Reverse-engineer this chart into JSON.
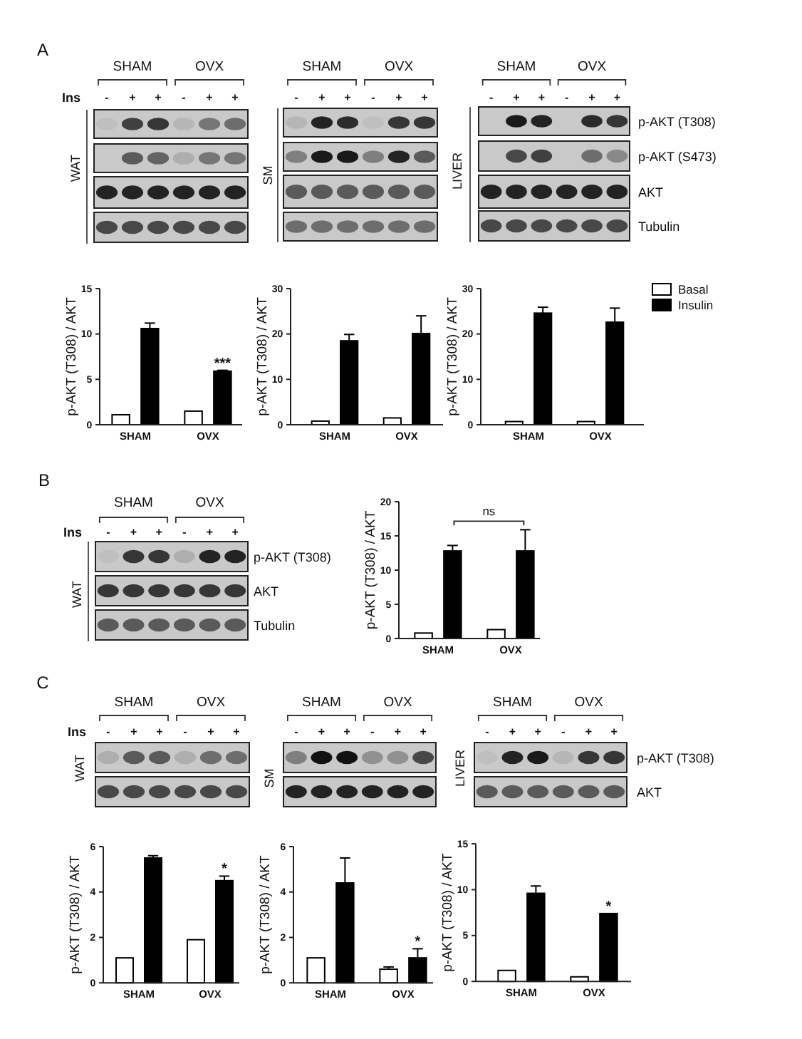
{
  "chart_data": [
    {
      "type": "other",
      "title": "A",
      "annotations": [
        "SHAM",
        "OVX"
      ],
      "xlabel": "Ins",
      "categories": [
        "-",
        "+",
        "+",
        "-",
        "+",
        "+"
      ],
      "ylabel": "WAT"
    },
    {
      "type": "other",
      "annotations": [
        "SHAM",
        "OVX"
      ],
      "categories": [
        "-",
        "+",
        "+",
        "-",
        "+",
        "+"
      ],
      "ylabel": "SM"
    },
    {
      "type": "other",
      "annotations": [
        "SHAM",
        "OVX"
      ],
      "categories": [
        "-",
        "+",
        "+",
        "-",
        "+",
        "+"
      ],
      "ylabel": "LIVER",
      "y_categories": [
        "p-AKT (T308)",
        "p-AKT (S473)",
        "AKT",
        "Tubulin"
      ]
    },
    {
      "type": "bar",
      "categories": [
        "SHAM",
        "OVX"
      ],
      "ylabel": "p-AKT (T308) / AKT",
      "ylim": [
        0,
        15
      ],
      "yticks": [
        0,
        5,
        10,
        15
      ],
      "series": [
        {
          "color": "#ffffff",
          "values": [
            1.1,
            1.5
          ]
        },
        {
          "color": "#000000",
          "values": [
            10.6,
            5.9
          ],
          "errors": [
            [
              10.6,
              11.2
            ],
            [
              5.9,
              6.0
            ]
          ]
        }
      ],
      "annotations": [
        {
          "text": "***",
          "x": "OVX",
          "y": 5.9
        }
      ]
    },
    {
      "type": "bar",
      "categories": [
        "SHAM",
        "OVX"
      ],
      "ylabel": "p-AKT (T308) / AKT",
      "ylim": [
        0,
        30
      ],
      "yticks": [
        0,
        10,
        20,
        30
      ],
      "series": [
        {
          "color": "#ffffff",
          "values": [
            0.8,
            1.5
          ]
        },
        {
          "color": "#000000",
          "values": [
            18.5,
            20.1
          ],
          "errors": [
            [
              18.5,
              19.9
            ],
            [
              20.1,
              24.0
            ]
          ]
        }
      ]
    },
    {
      "type": "bar",
      "categories": [
        "SHAM",
        "OVX"
      ],
      "ylabel": "p-AKT (T308) / AKT",
      "ylim": [
        0,
        30
      ],
      "yticks": [
        0,
        10,
        20,
        30
      ],
      "legend": "top right",
      "series": [
        {
          "name": "Basal",
          "color": "#ffffff",
          "values": [
            0.7,
            0.7
          ]
        },
        {
          "name": "Insulin",
          "color": "#000000",
          "values": [
            24.6,
            22.6
          ],
          "errors": [
            [
              24.6,
              25.9
            ],
            [
              22.6,
              25.7
            ]
          ]
        }
      ]
    },
    {
      "type": "other",
      "title": "B",
      "annotations": [
        "SHAM",
        "OVX"
      ],
      "xlabel": "Ins",
      "categories": [
        "-",
        "+",
        "+",
        "-",
        "+",
        "+"
      ],
      "ylabel": "WAT",
      "y_categories": [
        "p-AKT (T308)",
        "AKT",
        "Tubulin"
      ]
    },
    {
      "type": "bar",
      "categories": [
        "SHAM",
        "OVX"
      ],
      "ylabel": "p-AKT (T308) / AKT",
      "ylim": [
        0,
        20
      ],
      "yticks": [
        0,
        5,
        10,
        15,
        20
      ],
      "series": [
        {
          "color": "#ffffff",
          "values": [
            0.8,
            1.3
          ]
        },
        {
          "color": "#000000",
          "values": [
            12.8,
            12.8
          ],
          "errors": [
            [
              12.8,
              13.6
            ],
            [
              12.8,
              15.9
            ]
          ]
        }
      ],
      "annotations": [
        "ns"
      ]
    },
    {
      "type": "other",
      "title": "C",
      "annotations": [
        "SHAM",
        "OVX"
      ],
      "xlabel": "Ins",
      "categories": [
        "-",
        "+",
        "+",
        "-",
        "+",
        "+"
      ],
      "ylabel": "WAT"
    },
    {
      "type": "other",
      "annotations": [
        "SHAM",
        "OVX"
      ],
      "categories": [
        "-",
        "+",
        "+",
        "-",
        "+",
        "+"
      ],
      "ylabel": "SM"
    },
    {
      "type": "other",
      "annotations": [
        "SHAM",
        "OVX"
      ],
      "categories": [
        "-",
        "+",
        "+",
        "-",
        "+",
        "+"
      ],
      "ylabel": "LIVER",
      "y_categories": [
        "p-AKT (T308)",
        "AKT"
      ]
    },
    {
      "type": "bar",
      "categories": [
        "SHAM",
        "OVX"
      ],
      "ylabel": "p-AKT (T308) / AKT",
      "ylim": [
        0,
        6
      ],
      "yticks": [
        0,
        2,
        4,
        6
      ],
      "series": [
        {
          "color": "#ffffff",
          "values": [
            1.1,
            1.9
          ]
        },
        {
          "color": "#000000",
          "values": [
            5.5,
            4.5
          ],
          "errors": [
            [
              5.5,
              5.6
            ],
            [
              4.5,
              4.7
            ]
          ]
        }
      ],
      "annotations": [
        {
          "text": "*",
          "x": "OVX",
          "y": 4.5
        }
      ]
    },
    {
      "type": "bar",
      "categories": [
        "SHAM",
        "OVX"
      ],
      "ylabel": "p-AKT (T308) / AKT",
      "ylim": [
        0,
        6
      ],
      "yticks": [
        0,
        2,
        4,
        6
      ],
      "series": [
        {
          "color": "#ffffff",
          "values": [
            1.1,
            0.6
          ],
          "errors": [
            null,
            [
              0.6,
              0.7
            ]
          ]
        },
        {
          "color": "#000000",
          "values": [
            4.4,
            1.1
          ],
          "errors": [
            [
              4.4,
              5.5
            ],
            [
              1.1,
              1.5
            ]
          ]
        }
      ],
      "annotations": [
        {
          "text": "*",
          "x": "OVX",
          "y": 1.1
        }
      ]
    },
    {
      "type": "bar",
      "categories": [
        "SHAM",
        "OVX"
      ],
      "ylabel": "p-AKT (T308) / AKT",
      "ylim": [
        0,
        15
      ],
      "yticks": [
        0,
        5,
        10,
        15
      ],
      "series": [
        {
          "color": "#ffffff",
          "values": [
            1.2,
            0.5
          ]
        },
        {
          "color": "#000000",
          "values": [
            9.6,
            7.4
          ],
          "errors": [
            [
              9.6,
              10.4
            ],
            null
          ]
        }
      ],
      "annotations": [
        {
          "text": "*",
          "x": "OVX",
          "y": 7.4
        }
      ]
    }
  ]
}
